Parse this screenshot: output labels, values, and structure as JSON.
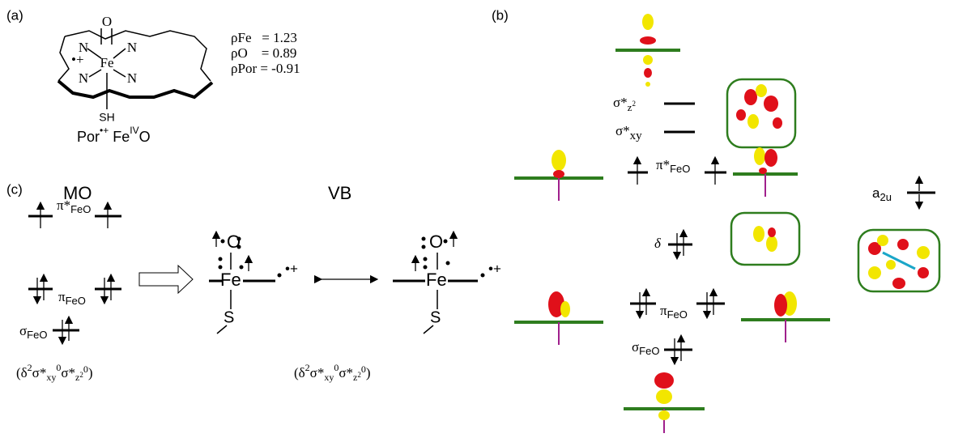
{
  "panel_a": {
    "label": "(a)",
    "atoms": {
      "oxygen": "O",
      "iron": "Fe",
      "nitrogen": "N",
      "radical": "•+",
      "thiolate": "SH"
    },
    "spin_densities": [
      "ρFe   = 1.23",
      "ρO    = 0.89",
      "ρPor = -0.91"
    ],
    "species": {
      "ligand": "Por",
      "radical": "•+",
      "metal": " Fe",
      "oxidation": "IV",
      "oxo": "O"
    }
  },
  "panel_b": {
    "label": "(b)",
    "levels": {
      "sigma_star_z2": {
        "symbol": "σ*",
        "sub": "z",
        "sup": "2"
      },
      "sigma_star_xy": {
        "symbol": "σ*",
        "sub": "xy"
      },
      "pi_star": {
        "symbol": "π*",
        "sub": "FeO"
      },
      "a2u": {
        "symbol": "a",
        "sub": "2u"
      },
      "delta": {
        "symbol": "δ"
      },
      "pi": {
        "symbol": "π",
        "sub": "FeO"
      },
      "sigma": {
        "symbol": "σ",
        "sub": "FeO"
      }
    }
  },
  "panel_c": {
    "label": "(c)",
    "mo_title": "MO",
    "vb_title": "VB",
    "levels": {
      "pi_star": {
        "symbol": "π*",
        "sub": "FeO"
      },
      "pi": {
        "symbol": "π",
        "sub": "FeO"
      },
      "sigma": {
        "symbol": "σ",
        "sub": "FeO"
      }
    },
    "configuration": {
      "open": "(δ",
      "d_occ": "2",
      "s": "σ*",
      "xy": "xy",
      "xy_occ": "0",
      "s2": "σ*",
      "z": "z",
      "z_sup": "2",
      "z_occ": "0",
      "close": ")"
    },
    "atoms": {
      "oxygen": "O",
      "iron": "Fe",
      "sulfur": "S",
      "radical": "•+"
    }
  }
}
